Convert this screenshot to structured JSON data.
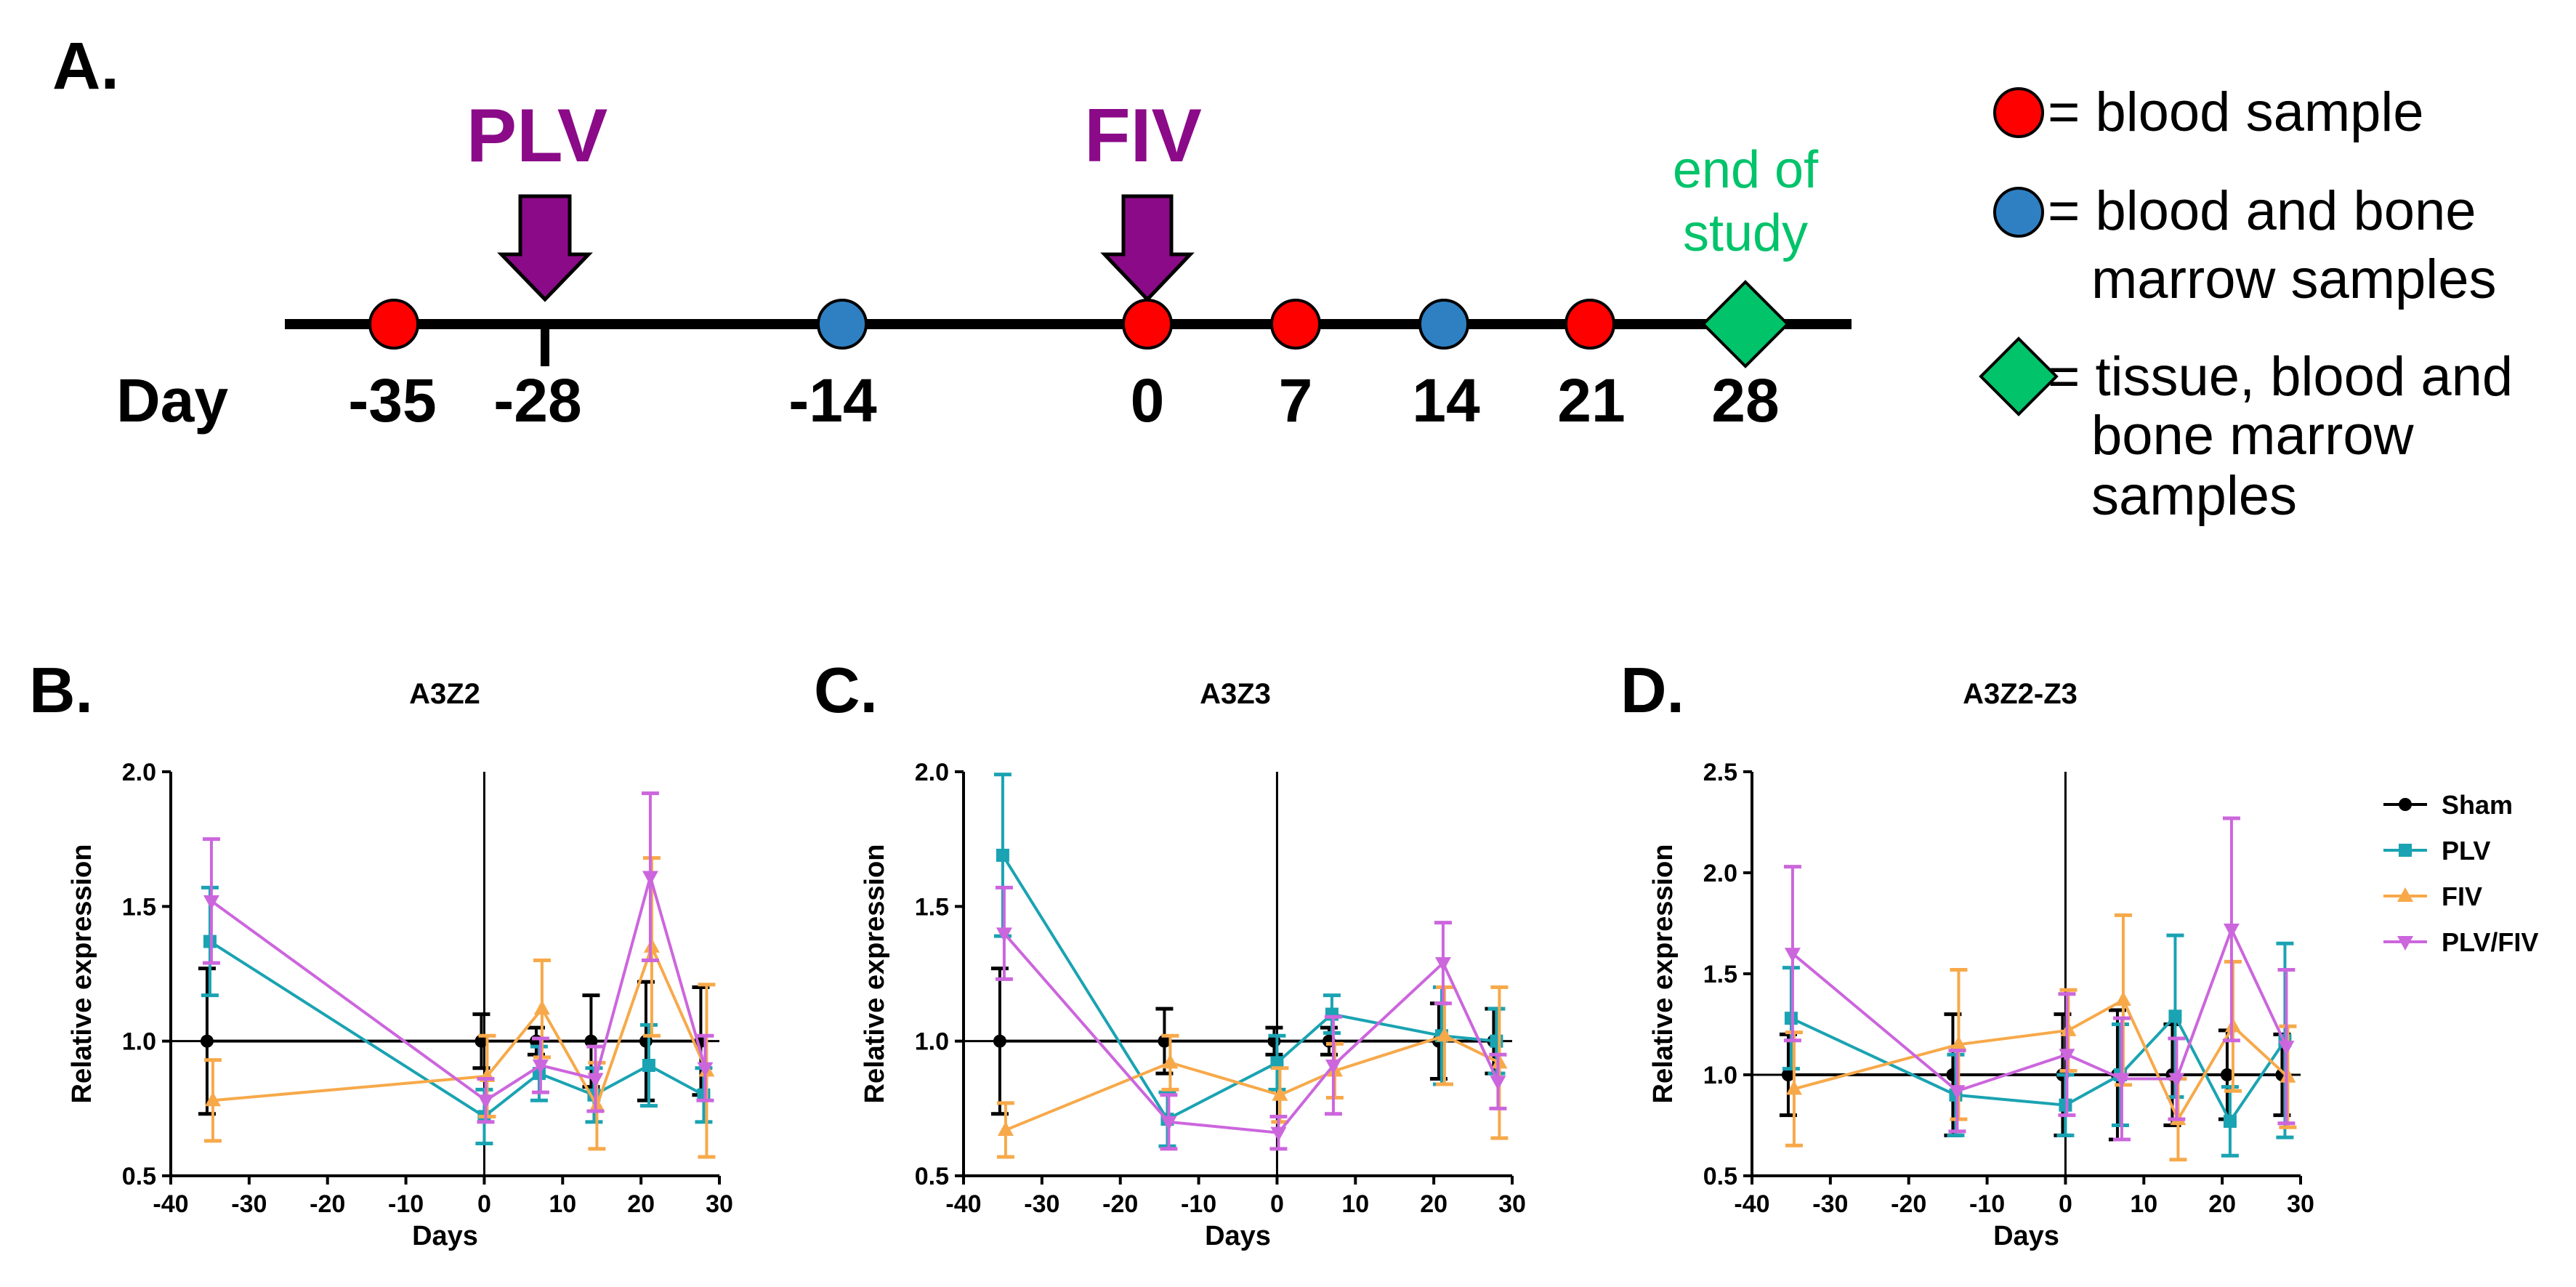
{
  "colors": {
    "sham": "#000000",
    "plv": "#1aa3b2",
    "fiv": "#f7a94a",
    "plvfiv": "#cc66dd",
    "purple": "#8b0a88",
    "green": "#00c36a",
    "red_dot": "#ff0000",
    "blue_dot": "#2f80c3"
  },
  "timeline": {
    "panel_label": "A.",
    "day_label": "Day",
    "ticks": [
      "-35",
      "-28",
      "-14",
      "0",
      "7",
      "14",
      "21",
      "28"
    ],
    "events": {
      "plv": "PLV",
      "fiv": "FIV",
      "end_line1": "end of",
      "end_line2": "study"
    },
    "legend": {
      "blood": "= blood sample",
      "blood_bone_1": "= blood and bone",
      "blood_bone_2": "marrow samples",
      "tissue_1": "= tissue, blood and",
      "tissue_2": "bone marrow",
      "tissue_3": "samples"
    }
  },
  "legend": {
    "sham": "Sham",
    "plv": "PLV",
    "fiv": "FIV",
    "plvfiv": "PLV/FIV"
  },
  "chart_data": [
    {
      "panel": "B.",
      "title": "A3Z2",
      "type": "line",
      "xlabel": "Days",
      "ylabel": "Relative expression",
      "xlim": [
        -40,
        30
      ],
      "ylim": [
        0.5,
        2.0
      ],
      "xticks": [
        "-40",
        "-30",
        "-20",
        "-10",
        "0",
        "10",
        "20",
        "30"
      ],
      "yticks": [
        "0.5",
        "1.0",
        "1.5",
        "2.0"
      ],
      "x": [
        -35,
        0,
        7,
        14,
        21,
        28
      ],
      "series": [
        {
          "name": "Sham",
          "values": [
            1.0,
            1.0,
            1.0,
            1.0,
            1.0,
            1.0
          ],
          "errors": [
            0.27,
            0.1,
            0.05,
            0.17,
            0.22,
            0.2
          ]
        },
        {
          "name": "PLV",
          "values": [
            1.37,
            0.72,
            0.88,
            0.8,
            0.91,
            0.8
          ],
          "errors": [
            0.2,
            0.1,
            0.1,
            0.1,
            0.15,
            0.1
          ]
        },
        {
          "name": "FIV",
          "values": [
            0.78,
            0.87,
            1.12,
            0.76,
            1.35,
            0.89
          ],
          "errors": [
            0.15,
            0.15,
            0.18,
            0.16,
            0.33,
            0.32
          ]
        },
        {
          "name": "PLV/FIV",
          "values": [
            1.52,
            0.78,
            0.91,
            0.86,
            1.61,
            0.9
          ],
          "errors": [
            0.23,
            0.08,
            0.1,
            0.12,
            0.31,
            0.12
          ]
        }
      ]
    },
    {
      "panel": "C.",
      "title": "A3Z3",
      "type": "line",
      "xlabel": "Days",
      "ylabel": "Relative expression",
      "xlim": [
        -40,
        30
      ],
      "ylim": [
        0.5,
        2.0
      ],
      "xticks": [
        "-40",
        "-30",
        "-20",
        "-10",
        "0",
        "10",
        "20",
        "30"
      ],
      "yticks": [
        "0.5",
        "1.0",
        "1.5",
        "2.0"
      ],
      "x": [
        -35,
        -14,
        0,
        7,
        21,
        28
      ],
      "series": [
        {
          "name": "Sham",
          "values": [
            1.0,
            1.0,
            1.0,
            1.0,
            1.0,
            1.0
          ],
          "errors": [
            0.27,
            0.12,
            0.05,
            0.05,
            0.14,
            0.12
          ]
        },
        {
          "name": "PLV",
          "values": [
            1.69,
            0.71,
            0.92,
            1.1,
            1.02,
            1.0
          ],
          "errors": [
            0.3,
            0.1,
            0.1,
            0.07,
            0.18,
            0.12
          ]
        },
        {
          "name": "FIV",
          "values": [
            0.67,
            0.92,
            0.8,
            0.89,
            1.02,
            0.92
          ],
          "errors": [
            0.1,
            0.1,
            0.1,
            0.1,
            0.18,
            0.28
          ]
        },
        {
          "name": "PLV/FIV",
          "values": [
            1.4,
            0.7,
            0.66,
            0.91,
            1.29,
            0.85
          ],
          "errors": [
            0.17,
            0.1,
            0.06,
            0.18,
            0.15,
            0.1
          ]
        }
      ]
    },
    {
      "panel": "D.",
      "title": "A3Z2-Z3",
      "type": "line",
      "xlabel": "Days",
      "ylabel": "Relative expression",
      "xlim": [
        -40,
        30
      ],
      "ylim": [
        0.5,
        2.5
      ],
      "xticks": [
        "-40",
        "-30",
        "-20",
        "-10",
        "0",
        "10",
        "20",
        "30"
      ],
      "yticks": [
        "0.5",
        "1.0",
        "1.5",
        "2.0",
        "2.5"
      ],
      "x": [
        -35,
        -14,
        0,
        7,
        14,
        21,
        28
      ],
      "series": [
        {
          "name": "Sham",
          "values": [
            1.0,
            1.0,
            1.0,
            1.0,
            1.0,
            1.0,
            1.0
          ],
          "errors": [
            0.2,
            0.3,
            0.3,
            0.32,
            0.25,
            0.22,
            0.2
          ]
        },
        {
          "name": "PLV",
          "values": [
            1.28,
            0.9,
            0.85,
            1.0,
            1.29,
            0.77,
            1.17
          ],
          "errors": [
            0.25,
            0.2,
            0.15,
            0.25,
            0.4,
            0.17,
            0.48
          ]
        },
        {
          "name": "FIV",
          "values": [
            0.93,
            1.15,
            1.22,
            1.37,
            0.78,
            1.24,
            0.99
          ],
          "errors": [
            0.28,
            0.37,
            0.2,
            0.42,
            0.2,
            0.32,
            0.25
          ]
        },
        {
          "name": "PLV/FIV",
          "values": [
            1.6,
            0.92,
            1.1,
            0.98,
            0.98,
            1.72,
            1.14
          ],
          "errors": [
            0.43,
            0.2,
            0.3,
            0.3,
            0.2,
            0.55,
            0.38
          ]
        }
      ]
    }
  ]
}
